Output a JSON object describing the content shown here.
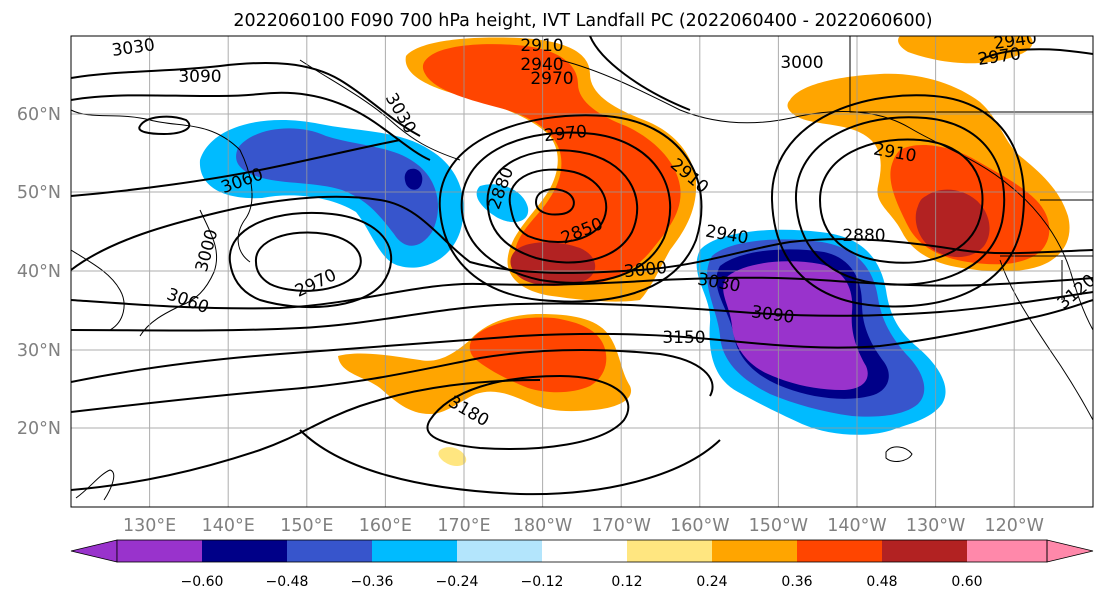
{
  "title": "2022060100 F090 700 hPa height, IVT Landfall PC (2022060400 - 2022060600)",
  "axes": {
    "lat_labels": [
      "60°N",
      "50°N",
      "40°N",
      "30°N",
      "20°N"
    ],
    "lon_labels": [
      "130°E",
      "140°E",
      "150°E",
      "160°E",
      "170°E",
      "180°W",
      "170°W",
      "160°W",
      "150°W",
      "140°W",
      "130°W",
      "120°W"
    ]
  },
  "contour_labels": [
    "3030",
    "3090",
    "3030",
    "2910",
    "2940",
    "2970",
    "3000",
    "2940",
    "2970",
    "3060",
    "2970",
    "2880",
    "2910",
    "2850",
    "2910",
    "2940",
    "2880",
    "3000",
    "3030",
    "3090",
    "2970",
    "3000",
    "3060",
    "3150",
    "3180",
    "3120"
  ],
  "colorbar": {
    "colors": [
      "#9933cc",
      "#000088",
      "#3755cc",
      "#00bbff",
      "#b3e5fc",
      "#ffffff",
      "#ffe680",
      "#ffa500",
      "#ff4500",
      "#b22222",
      "#ff88aa"
    ],
    "ticks": [
      "−0.60",
      "−0.48",
      "−0.36",
      "−0.24",
      "−0.12",
      "0.12",
      "0.24",
      "0.36",
      "0.48",
      "0.60"
    ]
  },
  "style": {
    "positive_levels": [
      "#ffe680",
      "#ffa500",
      "#ff4500",
      "#b22222"
    ],
    "negative_levels": [
      "#b3e5fc",
      "#00bbff",
      "#3755cc",
      "#000088",
      "#9933cc"
    ],
    "gridline_color": "#999999",
    "axis_label_color": "#808080"
  }
}
